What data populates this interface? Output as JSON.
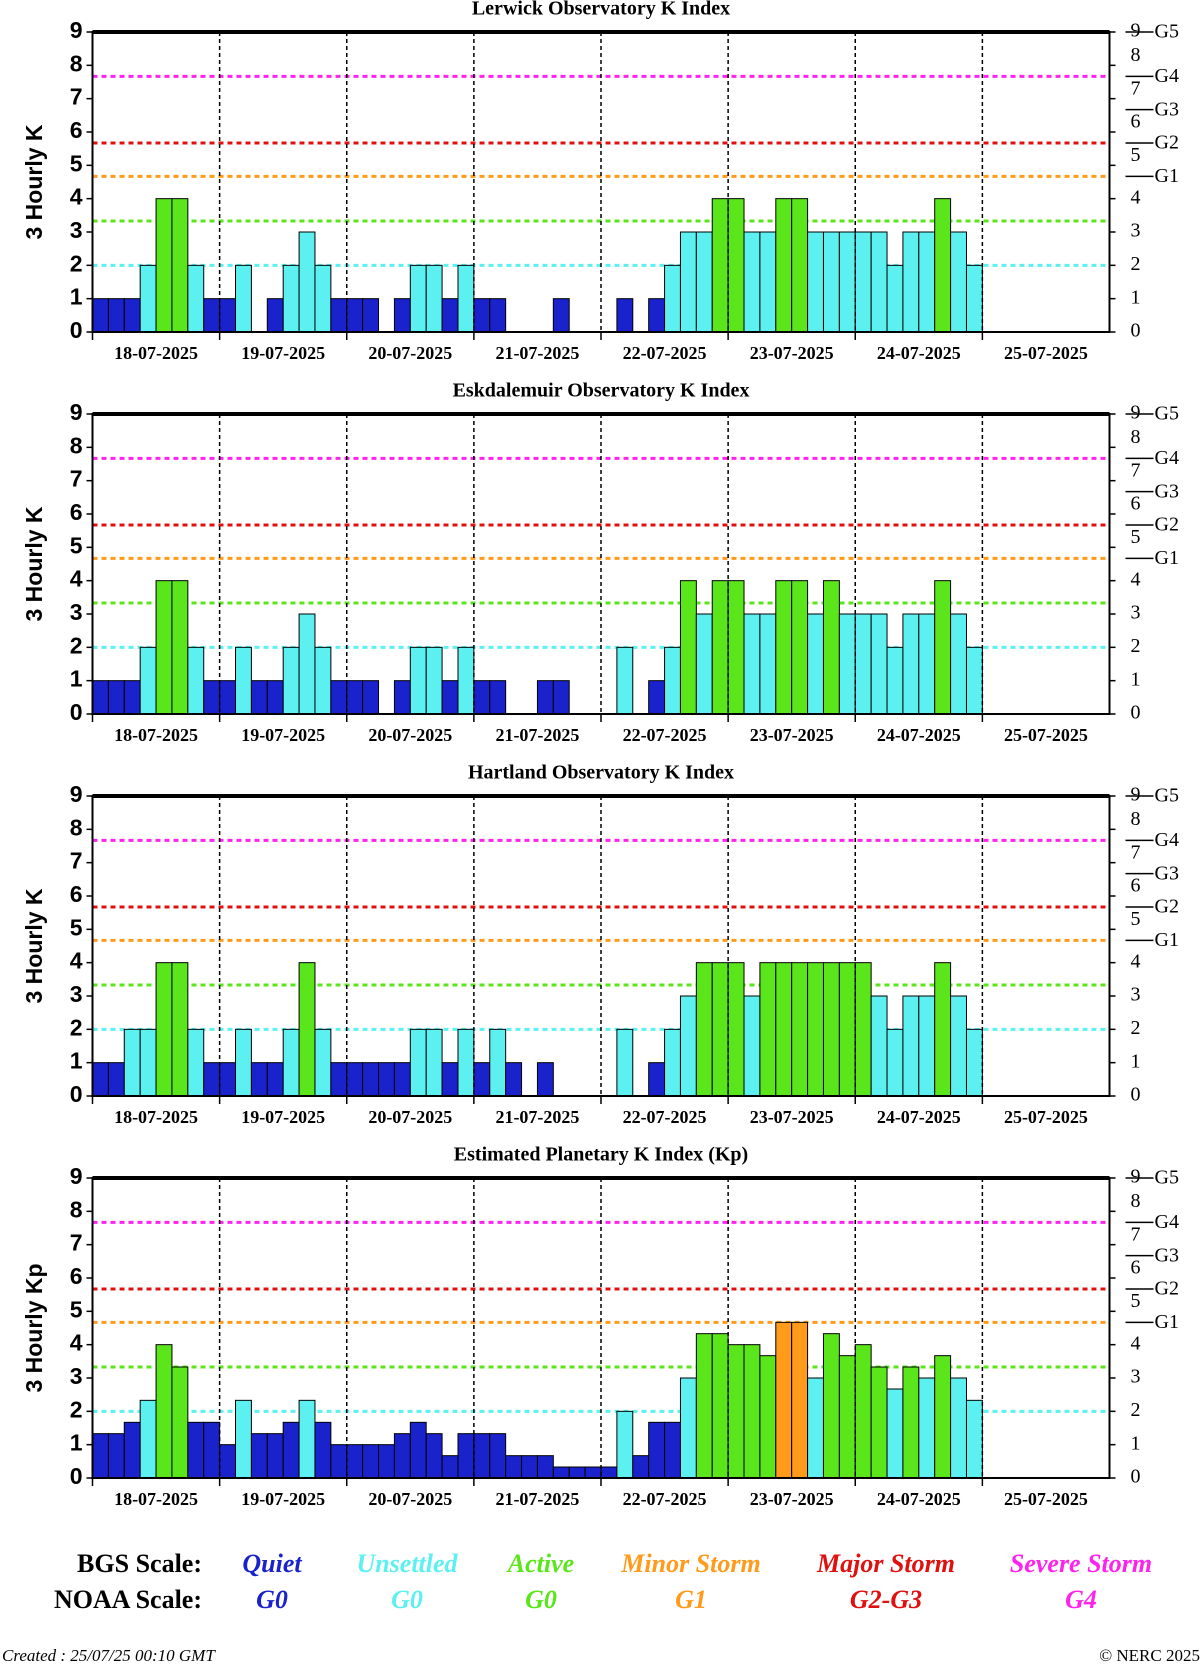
{
  "chart_data": [
    {
      "type": "bar",
      "title": "Lerwick Observatory K Index",
      "ylabel": "3 Hourly K",
      "categories": [
        "18-07-2025",
        "19-07-2025",
        "20-07-2025",
        "21-07-2025",
        "22-07-2025",
        "23-07-2025",
        "24-07-2025",
        "25-07-2025"
      ],
      "values": [
        [
          1,
          1,
          1,
          2,
          4,
          4,
          2,
          1
        ],
        [
          1,
          2,
          0,
          1,
          2,
          3,
          2,
          1
        ],
        [
          1,
          1,
          0,
          1,
          2,
          2,
          1,
          2
        ],
        [
          1,
          1,
          0,
          0,
          0,
          1,
          0,
          0
        ],
        [
          0,
          1,
          0,
          1,
          2,
          3,
          3,
          4
        ],
        [
          4,
          3,
          3,
          4,
          4,
          3,
          3,
          3
        ],
        [
          3,
          3,
          2,
          3,
          3,
          4,
          3,
          2
        ],
        [
          null,
          null,
          null,
          null,
          null,
          null,
          null,
          null
        ]
      ],
      "ylim": [
        0,
        9
      ],
      "yticks": [
        0,
        1,
        2,
        3,
        4,
        5,
        6,
        7,
        8,
        9
      ]
    },
    {
      "type": "bar",
      "title": "Eskdalemuir Observatory K Index",
      "ylabel": "3 Hourly K",
      "categories": [
        "18-07-2025",
        "19-07-2025",
        "20-07-2025",
        "21-07-2025",
        "22-07-2025",
        "23-07-2025",
        "24-07-2025",
        "25-07-2025"
      ],
      "values": [
        [
          1,
          1,
          1,
          2,
          4,
          4,
          2,
          1
        ],
        [
          1,
          2,
          1,
          1,
          2,
          3,
          2,
          1
        ],
        [
          1,
          1,
          0,
          1,
          2,
          2,
          1,
          2
        ],
        [
          1,
          1,
          0,
          0,
          1,
          1,
          0,
          0
        ],
        [
          0,
          2,
          0,
          1,
          2,
          4,
          3,
          4
        ],
        [
          4,
          3,
          3,
          4,
          4,
          3,
          4,
          3
        ],
        [
          3,
          3,
          2,
          3,
          3,
          4,
          3,
          2
        ],
        [
          null,
          null,
          null,
          null,
          null,
          null,
          null,
          null
        ]
      ],
      "ylim": [
        0,
        9
      ],
      "yticks": [
        0,
        1,
        2,
        3,
        4,
        5,
        6,
        7,
        8,
        9
      ]
    },
    {
      "type": "bar",
      "title": "Hartland Observatory K Index",
      "ylabel": "3 Hourly K",
      "categories": [
        "18-07-2025",
        "19-07-2025",
        "20-07-2025",
        "21-07-2025",
        "22-07-2025",
        "23-07-2025",
        "24-07-2025",
        "25-07-2025"
      ],
      "values": [
        [
          1,
          1,
          2,
          2,
          4,
          4,
          2,
          1
        ],
        [
          1,
          2,
          1,
          1,
          2,
          4,
          2,
          1
        ],
        [
          1,
          1,
          1,
          1,
          2,
          2,
          1,
          2
        ],
        [
          1,
          2,
          1,
          0,
          1,
          0,
          0,
          0
        ],
        [
          0,
          2,
          0,
          1,
          2,
          3,
          4,
          4
        ],
        [
          4,
          3,
          4,
          4,
          4,
          4,
          4,
          4
        ],
        [
          4,
          3,
          2,
          3,
          3,
          4,
          3,
          2
        ],
        [
          null,
          null,
          null,
          null,
          null,
          null,
          null,
          null
        ]
      ],
      "ylim": [
        0,
        9
      ],
      "yticks": [
        0,
        1,
        2,
        3,
        4,
        5,
        6,
        7,
        8,
        9
      ]
    },
    {
      "type": "bar",
      "title": "Estimated Planetary K Index (Kp)",
      "ylabel": "3 Hourly Kp",
      "categories": [
        "18-07-2025",
        "19-07-2025",
        "20-07-2025",
        "21-07-2025",
        "22-07-2025",
        "23-07-2025",
        "24-07-2025",
        "25-07-2025"
      ],
      "values": [
        [
          1.33,
          1.33,
          1.67,
          2.33,
          4,
          3.33,
          1.67,
          1.67
        ],
        [
          1,
          2.33,
          1.33,
          1.33,
          1.67,
          2.33,
          1.67,
          1
        ],
        [
          1,
          1,
          1,
          1.33,
          1.67,
          1.33,
          0.67,
          1.33
        ],
        [
          1.33,
          1.33,
          0.67,
          0.67,
          0.67,
          0.33,
          0.33,
          0.33
        ],
        [
          0.33,
          2,
          0.67,
          1.67,
          1.67,
          3,
          4.33,
          4.33
        ],
        [
          4,
          4,
          3.67,
          4.67,
          4.67,
          3,
          4.33,
          3.67
        ],
        [
          4,
          3.33,
          2.67,
          3.33,
          3,
          3.67,
          3,
          2.33
        ],
        [
          null,
          null,
          null,
          null,
          null,
          null,
          null,
          null
        ]
      ],
      "ylim": [
        0,
        9
      ],
      "yticks": [
        0,
        1,
        2,
        3,
        4,
        5,
        6,
        7,
        8,
        9
      ]
    }
  ],
  "base_color": "#1a22cc",
  "levels": [
    {
      "value": 2,
      "color": "#5cf0f0"
    },
    {
      "value": 3.33,
      "color": "#5ae61a"
    },
    {
      "value": 4.67,
      "color": "#ff9a1a"
    },
    {
      "value": 5.67,
      "color": "#e01010"
    },
    {
      "value": 7.67,
      "color": "#ff22ee"
    }
  ],
  "g_levels": [
    {
      "value": 4.67,
      "label": "G1"
    },
    {
      "value": 5.67,
      "label": "G2"
    },
    {
      "value": 6.67,
      "label": "G3"
    },
    {
      "value": 7.67,
      "label": "G4"
    },
    {
      "value": 9,
      "label": "G5"
    }
  ],
  "legend": {
    "bgs_label": "BGS Scale:",
    "noaa_label": "NOAA Scale:",
    "items": [
      {
        "bgs": "Quiet",
        "noaa": "G0",
        "color": "#1a22cc"
      },
      {
        "bgs": "Unsettled",
        "noaa": "G0",
        "color": "#5cf0f0"
      },
      {
        "bgs": "Active",
        "noaa": "G0",
        "color": "#5ae61a"
      },
      {
        "bgs": "Minor Storm",
        "noaa": "G1",
        "color": "#ff9a1a"
      },
      {
        "bgs": "Major Storm",
        "noaa": "G2-G3",
        "color": "#e01010"
      },
      {
        "bgs": "Severe Storm",
        "noaa": "G4",
        "color": "#ff22ee"
      }
    ]
  },
  "footer": {
    "created": "Created : 25/07/25 00:10 GMT",
    "copyright": "© NERC 2025"
  }
}
